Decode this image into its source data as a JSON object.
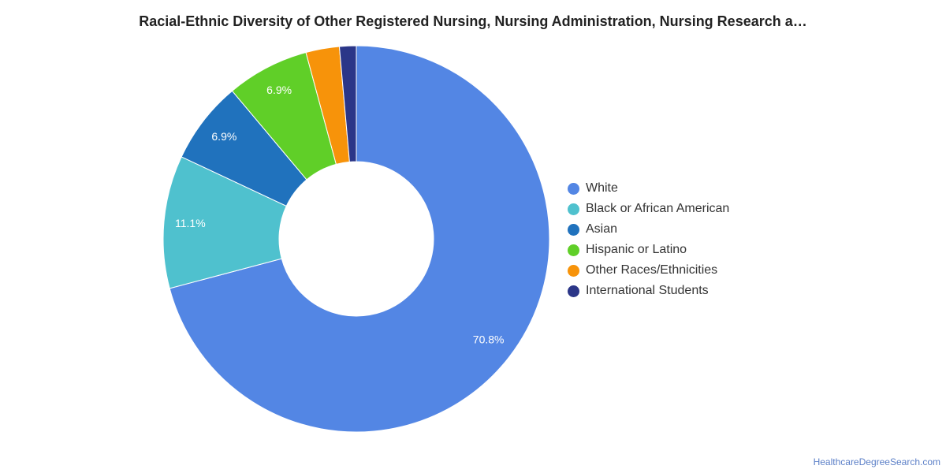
{
  "chart_data": {
    "type": "pie",
    "title": "Racial-Ethnic Diversity of Other Registered Nursing, Nursing Administration, Nursing Research a…",
    "donut": true,
    "legend_position": "right",
    "categories": [
      "White",
      "Black or African American",
      "Asian",
      "Hispanic or Latino",
      "Other Races/Ethnicities",
      "International Students"
    ],
    "values": [
      70.8,
      11.1,
      6.9,
      6.9,
      2.8,
      1.4
    ],
    "labels": [
      "70.8%",
      "11.1%",
      "6.9%",
      "6.9%",
      "",
      ""
    ],
    "colors": [
      "#5386e4",
      "#4fc1ce",
      "#2072bd",
      "#60cf28",
      "#f7930a",
      "#2b3688"
    ]
  },
  "source": "HealthcareDegreeSearch.com"
}
